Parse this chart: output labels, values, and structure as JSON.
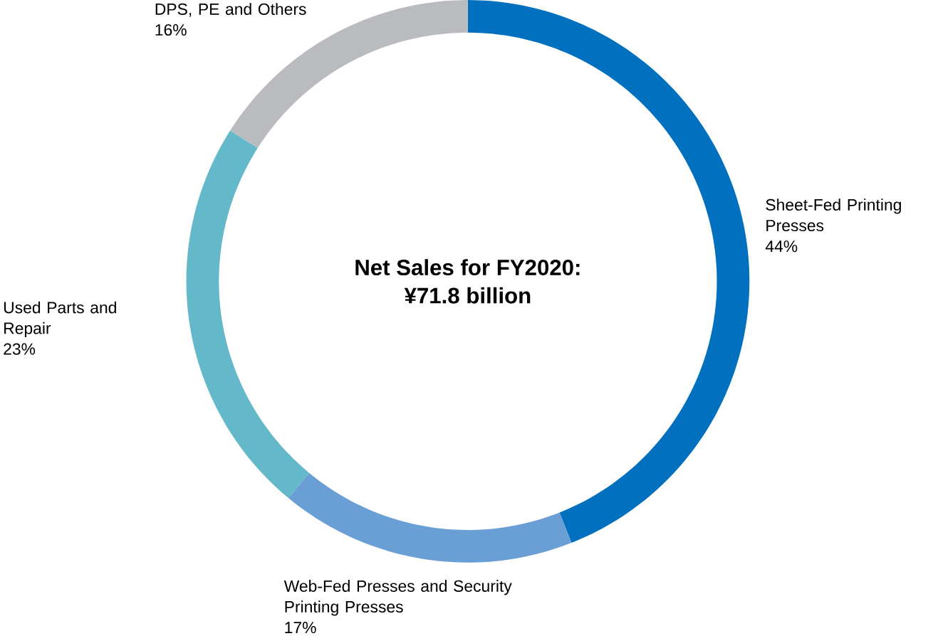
{
  "chart_data": {
    "type": "donut",
    "title": "Net Sales for FY2020:",
    "subtitle": "¥71.8 billion",
    "categories": [
      "Sheet-Fed Printing Presses",
      "Web-Fed Presses and Security Printing Presses",
      "Used Parts and Repair",
      "DPS, PE and Others"
    ],
    "values": [
      44,
      17,
      23,
      16
    ],
    "value_labels": [
      "44%",
      "17%",
      "23%",
      "16%"
    ],
    "colors": [
      "#0070bf",
      "#6a9fd6",
      "#63b8c9",
      "#b9bbbf"
    ],
    "legend": false
  }
}
